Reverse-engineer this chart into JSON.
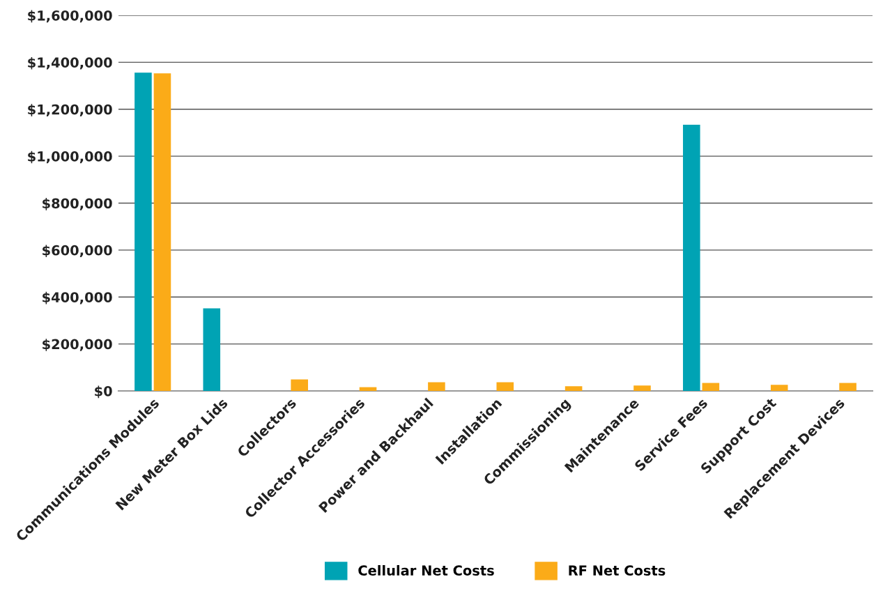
{
  "chart_data": {
    "type": "bar",
    "categories": [
      "Communications Modules",
      "New Meter Box Lids",
      "Collectors",
      "Collector Accessories",
      "Power and Backhaul",
      "Installation",
      "Commissioning",
      "Maintenance",
      "Service Fees",
      "Support Cost",
      "Replacement Devices"
    ],
    "series": [
      {
        "name": "Cellular Net Costs",
        "color": "#00a3b4",
        "values": [
          1356000,
          352000,
          null,
          null,
          null,
          null,
          null,
          null,
          1134000,
          null,
          null
        ]
      },
      {
        "name": "RF Net Costs",
        "color": "#fbab18",
        "values": [
          1353000,
          null,
          49000,
          16000,
          37000,
          37000,
          20000,
          23000,
          34000,
          26000,
          34000
        ]
      }
    ],
    "ylim": [
      0,
      1600000
    ],
    "yticks": [
      {
        "value": 0,
        "label": "$0"
      },
      {
        "value": 200000,
        "label": "$200,000"
      },
      {
        "value": 400000,
        "label": "$400,000"
      },
      {
        "value": 600000,
        "label": "$600,000"
      },
      {
        "value": 800000,
        "label": "$800,000"
      },
      {
        "value": 1000000,
        "label": "$1,000,000"
      },
      {
        "value": 1200000,
        "label": "$1,200,000"
      },
      {
        "value": 1400000,
        "label": "$1,400,000"
      },
      {
        "value": 1600000,
        "label": "$1,600,000"
      }
    ],
    "grid": "y",
    "legend": "bottom"
  }
}
